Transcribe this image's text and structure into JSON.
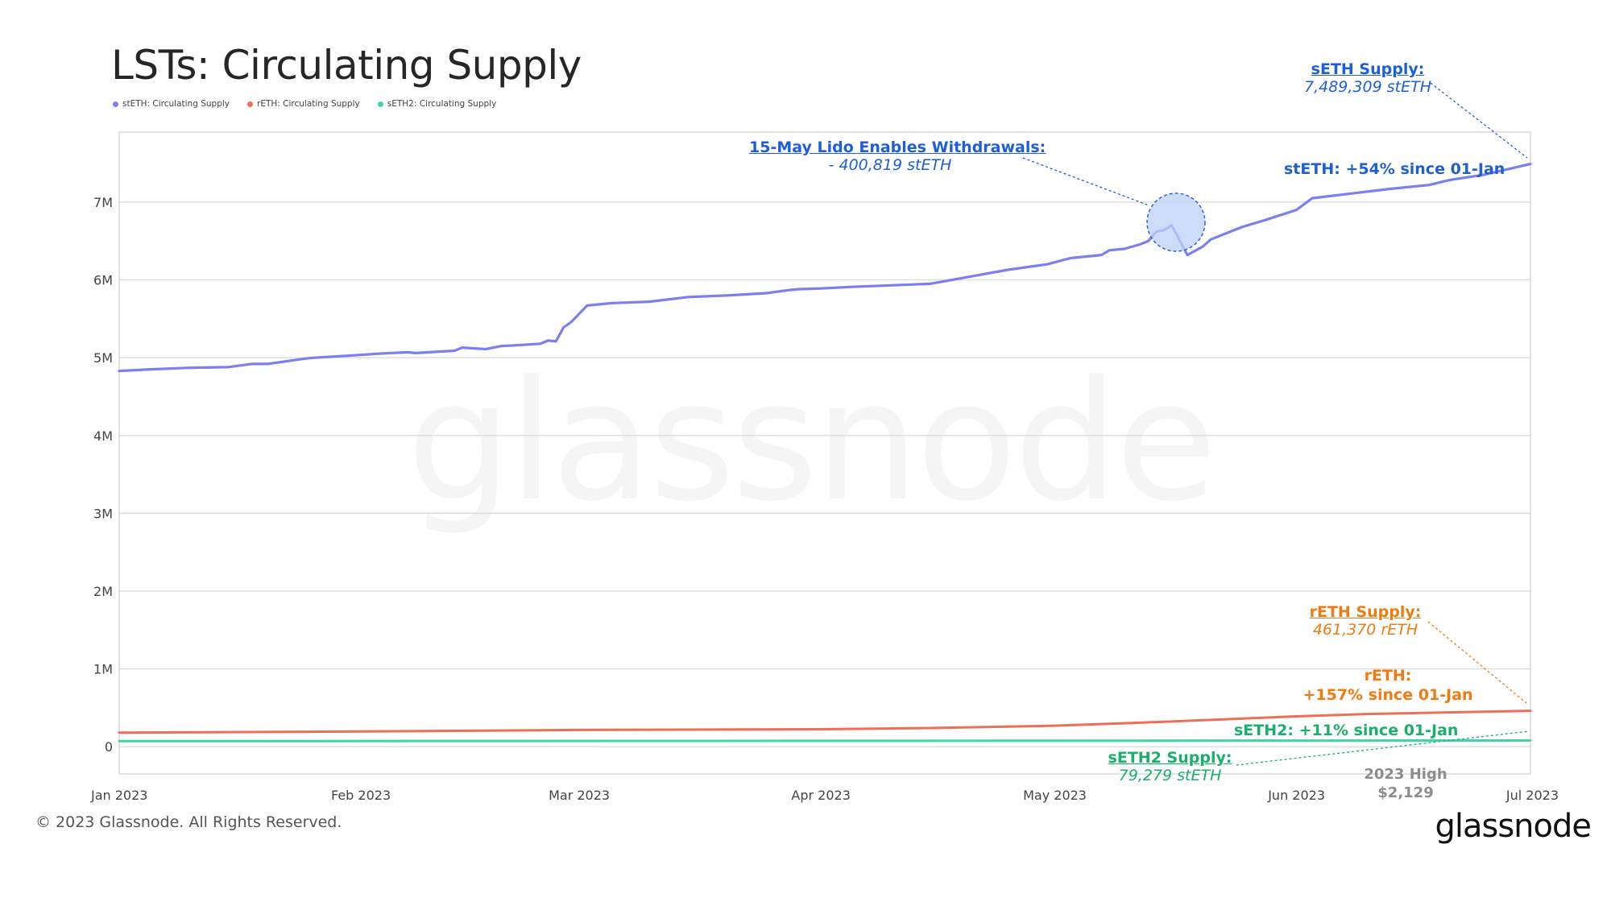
{
  "page": {
    "title": "LSTs: Circulating Supply",
    "copyright": "© 2023 Glassnode. All Rights Reserved.",
    "brand": "glassnode",
    "watermark": "glassnode"
  },
  "colors": {
    "steth": "#7b7ff0",
    "reth": "#ee6f58",
    "seth2": "#3ed6a4",
    "blue_annotation": "#1f5fd6",
    "orange_annotation": "#f07b12",
    "green_annotation": "#19b06d",
    "grid": "#dcdcdc",
    "axis_text": "#444444"
  },
  "annotations": {
    "steth_supply": {
      "title": "sETH Supply:",
      "value": "7,489,309 stETH"
    },
    "withdrawals": {
      "title": "15-May Lido Enables Withdrawals:",
      "value": "- 400,819 stETH"
    },
    "steth_change": "stETH: +54% since 01-Jan",
    "reth_supply": {
      "title": "rETH Supply:",
      "value": "461,370 rETH"
    },
    "reth_change_1": "rETH:",
    "reth_change_2": "+157% since 01-Jan",
    "seth2_change": "sETH2: +11% since 01-Jan",
    "seth2_supply": {
      "title": "sETH2 Supply:",
      "value": "79,279 stETH"
    },
    "high_1": "2023 High",
    "high_2": "$2,129"
  },
  "chart_data": {
    "type": "line",
    "title": "LSTs: Circulating Supply",
    "xlabel": "",
    "ylabel": "",
    "x_range": [
      "2023-01-01",
      "2023-07-01"
    ],
    "ylim": [
      -350000,
      7900000
    ],
    "grid": true,
    "legend_position": "top-left",
    "x_ticks": [
      {
        "date": "2023-01-01",
        "label": "Jan 2023"
      },
      {
        "date": "2023-02-01",
        "label": "Feb 2023"
      },
      {
        "date": "2023-03-01",
        "label": "Mar 2023"
      },
      {
        "date": "2023-04-01",
        "label": "Apr 2023"
      },
      {
        "date": "2023-05-01",
        "label": "May 2023"
      },
      {
        "date": "2023-06-01",
        "label": "Jun 2023"
      },
      {
        "date": "2023-07-01",
        "label": "Jul 2023"
      }
    ],
    "y_ticks": [
      {
        "value": 0,
        "label": "0"
      },
      {
        "value": 1000000,
        "label": "1M"
      },
      {
        "value": 2000000,
        "label": "2M"
      },
      {
        "value": 3000000,
        "label": "3M"
      },
      {
        "value": 4000000,
        "label": "4M"
      },
      {
        "value": 5000000,
        "label": "5M"
      },
      {
        "value": 6000000,
        "label": "6M"
      },
      {
        "value": 7000000,
        "label": "7M"
      }
    ],
    "series": [
      {
        "name": "stETH: Circulating Supply",
        "color": "#7b7ff0",
        "x": [
          "2023-01-01",
          "2023-01-05",
          "2023-01-10",
          "2023-01-15",
          "2023-01-18",
          "2023-01-20",
          "2023-01-25",
          "2023-01-26",
          "2023-01-31",
          "2023-02-03",
          "2023-02-07",
          "2023-02-08",
          "2023-02-13",
          "2023-02-14",
          "2023-02-17",
          "2023-02-19",
          "2023-02-21",
          "2023-02-24",
          "2023-02-25",
          "2023-02-26",
          "2023-02-27",
          "2023-02-28",
          "2023-03-02",
          "2023-03-05",
          "2023-03-10",
          "2023-03-15",
          "2023-03-20",
          "2023-03-25",
          "2023-03-28",
          "2023-03-29",
          "2023-04-01",
          "2023-04-05",
          "2023-04-10",
          "2023-04-15",
          "2023-04-20",
          "2023-04-25",
          "2023-04-30",
          "2023-05-03",
          "2023-05-07",
          "2023-05-08",
          "2023-05-10",
          "2023-05-12",
          "2023-05-13",
          "2023-05-14",
          "2023-05-15",
          "2023-05-16",
          "2023-05-18",
          "2023-05-20",
          "2023-05-21",
          "2023-05-25",
          "2023-05-28",
          "2023-06-01",
          "2023-06-03",
          "2023-06-08",
          "2023-06-13",
          "2023-06-18",
          "2023-06-20",
          "2023-06-21",
          "2023-06-25",
          "2023-07-01"
        ],
        "values": [
          4830000,
          4850000,
          4870000,
          4880000,
          4920000,
          4920000,
          4990000,
          5000000,
          5030000,
          5050000,
          5070000,
          5060000,
          5090000,
          5130000,
          5110000,
          5150000,
          5160000,
          5180000,
          5220000,
          5210000,
          5390000,
          5460000,
          5670000,
          5700000,
          5720000,
          5780000,
          5800000,
          5830000,
          5870000,
          5880000,
          5890000,
          5910000,
          5930000,
          5950000,
          6040000,
          6130000,
          6200000,
          6280000,
          6320000,
          6380000,
          6400000,
          6460000,
          6500000,
          6620000,
          6640000,
          6700000,
          6320000,
          6430000,
          6520000,
          6680000,
          6770000,
          6900000,
          7050000,
          7110000,
          7170000,
          7220000,
          7270000,
          7290000,
          7350000,
          7490000
        ]
      },
      {
        "name": "rETH: Circulating Supply",
        "color": "#ee6f58",
        "x": [
          "2023-01-01",
          "2023-02-01",
          "2023-03-01",
          "2023-04-01",
          "2023-04-15",
          "2023-05-01",
          "2023-05-15",
          "2023-06-01",
          "2023-06-10",
          "2023-07-01"
        ],
        "values": [
          180000,
          195000,
          215000,
          225000,
          240000,
          270000,
          320000,
          390000,
          420000,
          461370
        ]
      },
      {
        "name": "sETH2: Circulating Supply",
        "color": "#3ed6a4",
        "x": [
          "2023-01-01",
          "2023-07-01"
        ],
        "values": [
          71500,
          79279
        ]
      }
    ]
  }
}
